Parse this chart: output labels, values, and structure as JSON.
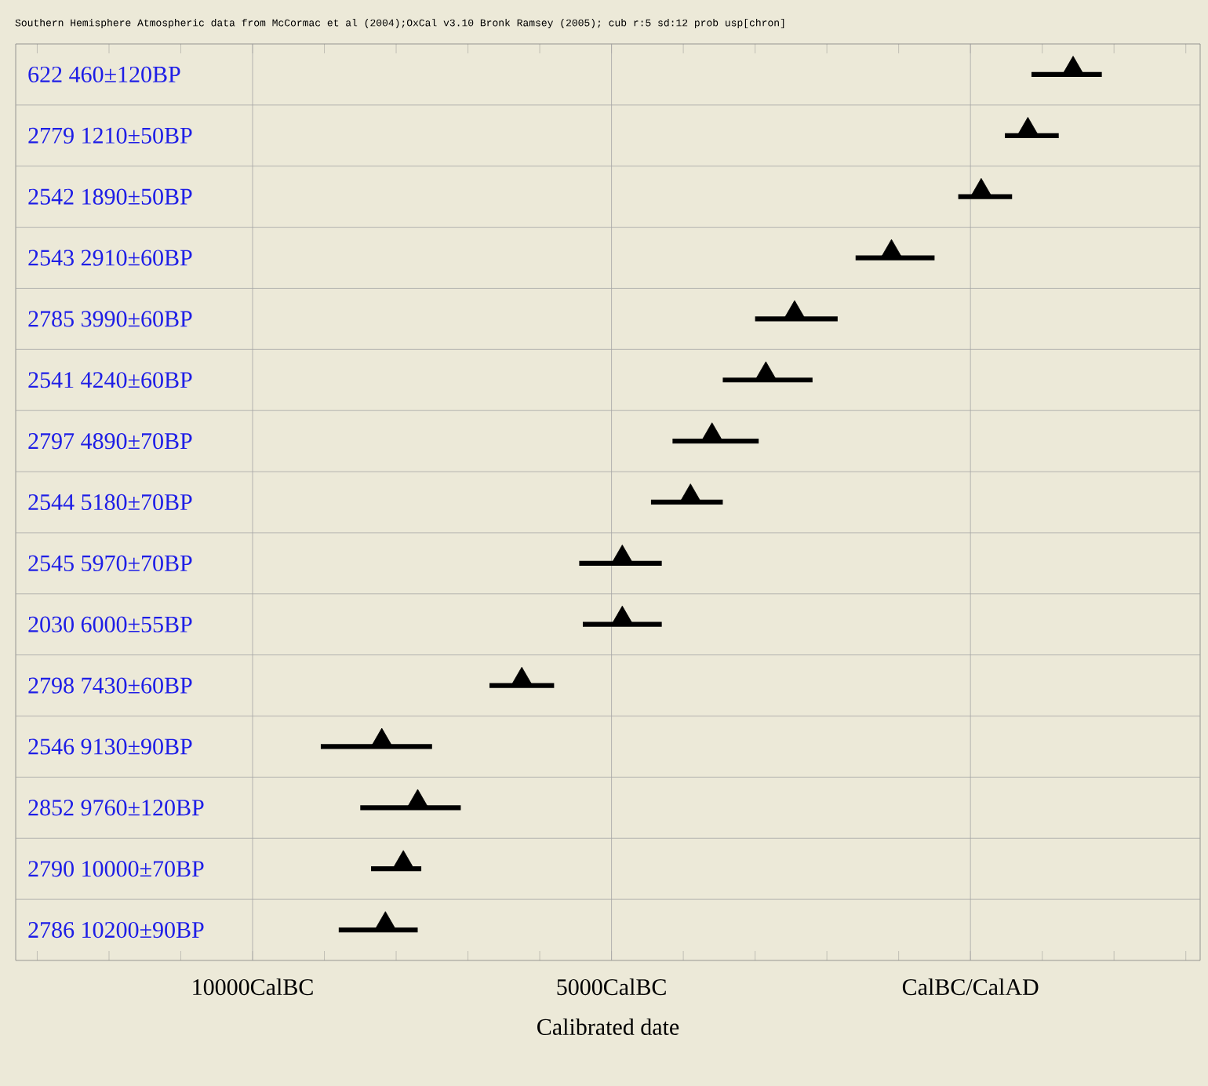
{
  "chart_data": {
    "type": "bar",
    "orientation": "horizontal",
    "title": "Southern Hemisphere Atmospheric data from McCormac et al (2004);OxCal v3.10 Bronk Ramsey (2005); cub r:5 sd:12 prob usp[chron]",
    "xlabel": "Calibrated date",
    "categories": [
      "622 460±120BP",
      "2779 1210±50BP",
      "2542 1890±50BP",
      "2543 2910±60BP",
      "2785 3990±60BP",
      "2541 4240±60BP",
      "2797 4890±70BP",
      "2544 5180±70BP",
      "2545 5970±70BP",
      "2030 6000±55BP",
      "2798 7430±60BP",
      "2546 9130±90BP",
      "2852 9760±120BP",
      "2790 10000±70BP",
      "2786 10200±90BP"
    ],
    "series": [
      {
        "color": "#000000",
        "base": [
          850,
          480,
          -170,
          -1600,
          -3000,
          -3450,
          -4150,
          -4450,
          -5450,
          -5400,
          -6700,
          -9050,
          -8500,
          -8350,
          -8800
        ],
        "values": [
          980,
          750,
          750,
          1100,
          1150,
          1250,
          1200,
          1000,
          1150,
          1100,
          900,
          1550,
          1400,
          700,
          1100
        ]
      },
      {
        "type": "scatter",
        "marker": "triangle",
        "color": "#000000",
        "values": [
          1430,
          800,
          150,
          -1100,
          -2450,
          -2850,
          -3600,
          -3900,
          -4850,
          -4850,
          -6250,
          -8200,
          -7700,
          -7900,
          -8150
        ]
      }
    ],
    "xlim": [
      -13300,
      3200
    ],
    "xticks": [
      {
        "value": -13000,
        "label": null
      },
      {
        "value": -12000,
        "label": null
      },
      {
        "value": -11000,
        "label": null
      },
      {
        "value": -10000,
        "label": "10000CalBC"
      },
      {
        "value": -9000,
        "label": null
      },
      {
        "value": -8000,
        "label": null
      },
      {
        "value": -7000,
        "label": null
      },
      {
        "value": -6000,
        "label": null
      },
      {
        "value": -5000,
        "label": "5000CalBC"
      },
      {
        "value": -4000,
        "label": null
      },
      {
        "value": -3000,
        "label": null
      },
      {
        "value": -2000,
        "label": null
      },
      {
        "value": -1000,
        "label": null
      },
      {
        "value": 0,
        "label": "CalBC/CalAD"
      },
      {
        "value": 1000,
        "label": null
      },
      {
        "value": 2000,
        "label": null
      },
      {
        "value": 3000,
        "label": null
      }
    ],
    "grid": true
  }
}
